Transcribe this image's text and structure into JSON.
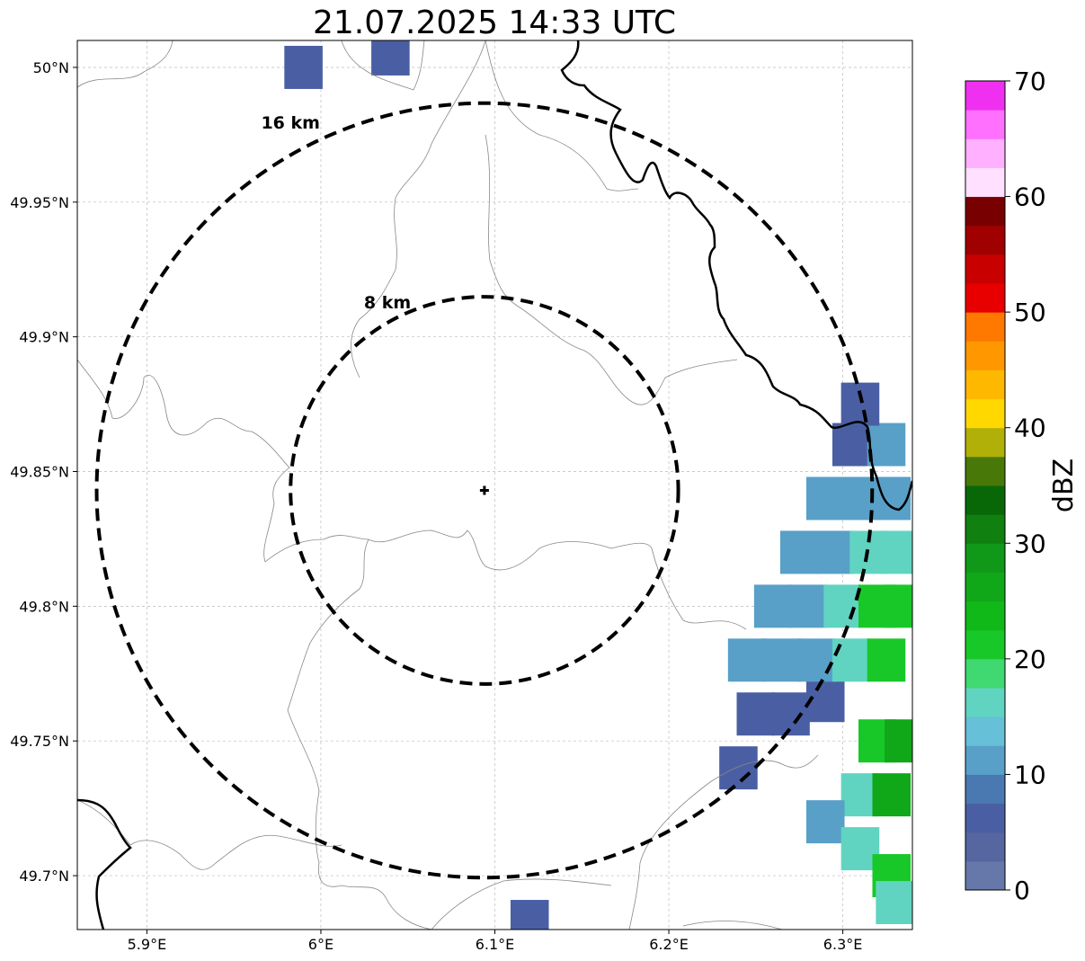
{
  "title": "21.07.2025 14:33 UTC",
  "map": {
    "lon_range": [
      5.86,
      6.34
    ],
    "lat_range": [
      49.68,
      50.01
    ],
    "x_ticks": [
      {
        "value": 5.9,
        "label": "5.9°E"
      },
      {
        "value": 6.0,
        "label": "6°E"
      },
      {
        "value": 6.1,
        "label": "6.1°E"
      },
      {
        "value": 6.2,
        "label": "6.2°E"
      },
      {
        "value": 6.3,
        "label": "6.3°E"
      }
    ],
    "y_ticks": [
      {
        "value": 50.0,
        "label": "50°N"
      },
      {
        "value": 49.95,
        "label": "49.95°N"
      },
      {
        "value": 49.9,
        "label": "49.9°N"
      },
      {
        "value": 49.85,
        "label": "49.85°N"
      },
      {
        "value": 49.8,
        "label": "49.8°N"
      },
      {
        "value": 49.75,
        "label": "49.75°N"
      },
      {
        "value": 49.7,
        "label": "49.7°N"
      }
    ],
    "grid": true,
    "center": {
      "lon": 6.094,
      "lat": 49.843
    },
    "rings": [
      {
        "label": "8 km",
        "radius_km": 8
      },
      {
        "label": "16 km",
        "radius_km": 16
      }
    ]
  },
  "colorbar": {
    "label": "dBZ",
    "min": 0,
    "max": 70,
    "step": 2.5,
    "ticks": [
      "0",
      "10",
      "20",
      "30",
      "40",
      "50",
      "60",
      "70"
    ],
    "colors": [
      "#6677aa",
      "#5566a0",
      "#4a5fa3",
      "#4a78b0",
      "#58a0c8",
      "#66c0d8",
      "#60d4c0",
      "#40d870",
      "#18c828",
      "#10b818",
      "#10a818",
      "#109818",
      "#108010",
      "#086808",
      "#487808",
      "#b0b008",
      "#ffd800",
      "#ffb800",
      "#ff9800",
      "#ff7800",
      "#e80000",
      "#c80000",
      "#a00000",
      "#780000",
      "#ffe0ff",
      "#ffb0ff",
      "#ff70ff",
      "#f030f0"
    ]
  },
  "radar_cells": [
    {
      "lon": 6.24,
      "lat": 49.74,
      "dbz": 5
    },
    {
      "lon": 6.25,
      "lat": 49.76,
      "dbz": 5
    },
    {
      "lon": 6.27,
      "lat": 49.76,
      "dbz": 7
    },
    {
      "lon": 6.29,
      "lat": 49.765,
      "dbz": 7
    },
    {
      "lon": 6.245,
      "lat": 49.78,
      "dbz": 10
    },
    {
      "lon": 6.265,
      "lat": 49.78,
      "dbz": 12
    },
    {
      "lon": 6.285,
      "lat": 49.78,
      "dbz": 12
    },
    {
      "lon": 6.305,
      "lat": 49.78,
      "dbz": 15
    },
    {
      "lon": 6.325,
      "lat": 49.78,
      "dbz": 20
    },
    {
      "lon": 6.26,
      "lat": 49.8,
      "dbz": 10
    },
    {
      "lon": 6.28,
      "lat": 49.8,
      "dbz": 12
    },
    {
      "lon": 6.3,
      "lat": 49.8,
      "dbz": 15
    },
    {
      "lon": 6.32,
      "lat": 49.8,
      "dbz": 20
    },
    {
      "lon": 6.335,
      "lat": 49.8,
      "dbz": 22
    },
    {
      "lon": 6.275,
      "lat": 49.82,
      "dbz": 10
    },
    {
      "lon": 6.295,
      "lat": 49.82,
      "dbz": 12
    },
    {
      "lon": 6.315,
      "lat": 49.82,
      "dbz": 15
    },
    {
      "lon": 6.333,
      "lat": 49.82,
      "dbz": 17
    },
    {
      "lon": 6.29,
      "lat": 49.84,
      "dbz": 10
    },
    {
      "lon": 6.31,
      "lat": 49.84,
      "dbz": 12
    },
    {
      "lon": 6.328,
      "lat": 49.84,
      "dbz": 10
    },
    {
      "lon": 6.305,
      "lat": 49.86,
      "dbz": 7
    },
    {
      "lon": 6.325,
      "lat": 49.86,
      "dbz": 10
    },
    {
      "lon": 6.31,
      "lat": 49.875,
      "dbz": 5
    },
    {
      "lon": 6.32,
      "lat": 49.75,
      "dbz": 22
    },
    {
      "lon": 6.335,
      "lat": 49.75,
      "dbz": 25
    },
    {
      "lon": 6.31,
      "lat": 49.73,
      "dbz": 17
    },
    {
      "lon": 6.328,
      "lat": 49.73,
      "dbz": 25
    },
    {
      "lon": 6.29,
      "lat": 49.72,
      "dbz": 10
    },
    {
      "lon": 6.31,
      "lat": 49.71,
      "dbz": 17
    },
    {
      "lon": 6.328,
      "lat": 49.7,
      "dbz": 22
    },
    {
      "lon": 6.33,
      "lat": 49.69,
      "dbz": 15
    },
    {
      "lon": 5.99,
      "lat": 50.0,
      "dbz": 7
    },
    {
      "lon": 6.04,
      "lat": 50.005,
      "dbz": 5
    },
    {
      "lon": 6.12,
      "lat": 49.683,
      "dbz": 5
    }
  ]
}
